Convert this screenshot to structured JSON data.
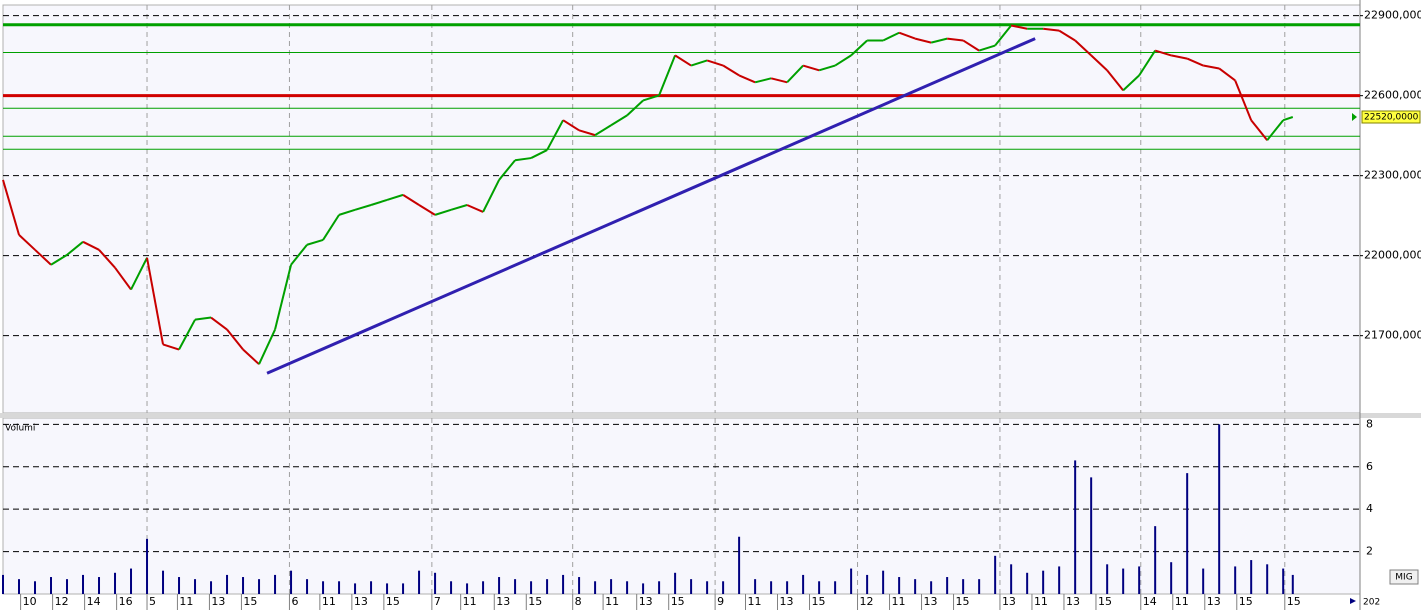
{
  "chart_data": {
    "type": "candlestick",
    "price": {
      "x": [
        0,
        1,
        2,
        3,
        4,
        5,
        6,
        7,
        8,
        9,
        10,
        11,
        12,
        13,
        14,
        15,
        16,
        17,
        18,
        19,
        20,
        21,
        22,
        23,
        24,
        25,
        26,
        27,
        28,
        29,
        30,
        31,
        32,
        33,
        34,
        35,
        36,
        37,
        38,
        39,
        40,
        41,
        42,
        43,
        44,
        45,
        46,
        47,
        48,
        49,
        50,
        51,
        52,
        53,
        54,
        55,
        56,
        57,
        58,
        59,
        60,
        61,
        62,
        63,
        64,
        65,
        66,
        67,
        68,
        69,
        70,
        71,
        72,
        73,
        74,
        75,
        76,
        77,
        78,
        79,
        80,
        80.6
      ],
      "values": [
        22284,
        22078,
        22022,
        21966,
        22003,
        22052,
        22022,
        21955,
        21873,
        21992,
        21667,
        21648,
        21760,
        21768,
        21723,
        21648,
        21593,
        21723,
        21966,
        22041,
        22059,
        22153,
        22172,
        22190,
        22209,
        22228,
        22190,
        22153,
        22172,
        22190,
        22164,
        22284,
        22358,
        22366,
        22396,
        22508,
        22470,
        22452,
        22489,
        22526,
        22582,
        22601,
        22751,
        22713,
        22732,
        22713,
        22676,
        22650,
        22665,
        22650,
        22713,
        22695,
        22713,
        22751,
        22807,
        22807,
        22836,
        22814,
        22799,
        22814,
        22807,
        22769,
        22788,
        22863,
        22851,
        22851,
        22844,
        22807,
        22751,
        22695,
        22620,
        22676,
        22769,
        22751,
        22739,
        22713,
        22702,
        22657,
        22508,
        22433,
        22508,
        22520
      ],
      "up_color": "#00a000",
      "down_color": "#c80000",
      "ylim": [
        21410,
        22940
      ],
      "yticks": [
        {
          "value": 22900,
          "label": "22900,000"
        },
        {
          "value": 22600,
          "label": "22600,000"
        },
        {
          "value": 22300,
          "label": "22300,000"
        },
        {
          "value": 22000,
          "label": "22000,000"
        },
        {
          "value": 21700,
          "label": "21700,000"
        }
      ],
      "levels": [
        {
          "value": 22866,
          "color": "#00a000",
          "width": 3
        },
        {
          "value": 22762,
          "color": "#00a000",
          "width": 1
        },
        {
          "value": 22600,
          "color": "#d00000",
          "width": 3
        },
        {
          "value": 22553,
          "color": "#00a000",
          "width": 1
        },
        {
          "value": 22448,
          "color": "#00a000",
          "width": 1
        },
        {
          "value": 22399,
          "color": "#00a000",
          "width": 1
        }
      ],
      "trendline": {
        "x": [
          16.5,
          64.5
        ],
        "y": [
          21559,
          22814
        ],
        "color": "#3020b0"
      },
      "last": {
        "value": 22520,
        "label": "22520,0000"
      }
    },
    "volume": {
      "title": "Volumi",
      "values": [
        0.9,
        0.7,
        0.6,
        0.8,
        0.7,
        0.9,
        0.8,
        1.0,
        1.2,
        2.6,
        1.1,
        0.8,
        0.7,
        0.6,
        0.9,
        0.8,
        0.7,
        0.9,
        1.1,
        0.7,
        0.6,
        0.6,
        0.5,
        0.6,
        0.5,
        0.5,
        1.1,
        1.0,
        0.6,
        0.5,
        0.6,
        0.8,
        0.7,
        0.6,
        0.7,
        0.9,
        0.8,
        0.6,
        0.7,
        0.6,
        0.5,
        0.6,
        1.0,
        0.7,
        0.6,
        0.6,
        2.7,
        0.7,
        0.6,
        0.6,
        0.9,
        0.6,
        0.6,
        1.2,
        0.9,
        1.1,
        0.8,
        0.7,
        0.6,
        0.8,
        0.7,
        0.7,
        1.8,
        1.4,
        1.0,
        1.1,
        1.3,
        6.3,
        5.5,
        1.4,
        1.2,
        1.3,
        3.2,
        1.5,
        5.7,
        1.2,
        8.0,
        1.3,
        1.6,
        1.4,
        1.2,
        0.9
      ],
      "color": "#000080",
      "ylim": [
        0,
        8.3
      ],
      "yticks": [
        8,
        6,
        4,
        2
      ]
    },
    "xlim": [
      0,
      84.8
    ],
    "xticks": [
      {
        "value": 1.1,
        "label": "10"
      },
      {
        "value": 3.1,
        "label": "12"
      },
      {
        "value": 5.1,
        "label": "14"
      },
      {
        "value": 7.1,
        "label": "16"
      },
      {
        "value": 10.9,
        "label": "11"
      },
      {
        "value": 12.9,
        "label": "13"
      },
      {
        "value": 14.9,
        "label": "15"
      },
      {
        "value": 19.8,
        "label": "11"
      },
      {
        "value": 21.8,
        "label": "13"
      },
      {
        "value": 23.8,
        "label": "15"
      },
      {
        "value": 28.6,
        "label": "11"
      },
      {
        "value": 30.7,
        "label": "13"
      },
      {
        "value": 32.7,
        "label": "15"
      },
      {
        "value": 37.5,
        "label": "11"
      },
      {
        "value": 39.6,
        "label": "13"
      },
      {
        "value": 41.6,
        "label": "15"
      },
      {
        "value": 46.4,
        "label": "11"
      },
      {
        "value": 48.4,
        "label": "13"
      },
      {
        "value": 50.4,
        "label": "15"
      },
      {
        "value": 55.4,
        "label": "11"
      },
      {
        "value": 57.4,
        "label": "13"
      },
      {
        "value": 59.4,
        "label": "15"
      },
      {
        "value": 64.3,
        "label": "11"
      },
      {
        "value": 66.3,
        "label": "13"
      },
      {
        "value": 68.3,
        "label": "15"
      },
      {
        "value": 73.1,
        "label": "11"
      },
      {
        "value": 75.1,
        "label": "13"
      },
      {
        "value": 77.1,
        "label": "15"
      }
    ],
    "day_ticks": [
      {
        "value": 9.0,
        "label": "5"
      },
      {
        "value": 17.9,
        "label": "6"
      },
      {
        "value": 26.8,
        "label": "7"
      },
      {
        "value": 35.6,
        "label": "8"
      },
      {
        "value": 44.5,
        "label": "9"
      },
      {
        "value": 53.4,
        "label": "12"
      },
      {
        "value": 62.3,
        "label": "13"
      },
      {
        "value": 71.1,
        "label": "14"
      },
      {
        "value": 80.1,
        "label": "15"
      }
    ],
    "day_tick_color": "#00b000",
    "period": "MIG",
    "corner": "202"
  }
}
